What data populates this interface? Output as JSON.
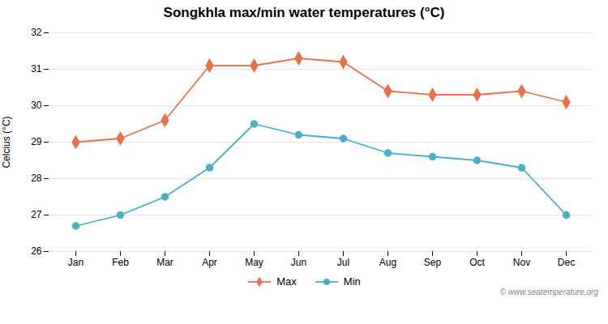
{
  "chart_data": {
    "type": "line",
    "title": "Songkhla max/min water temperatures (°C)",
    "y_label": "Celcius (°C)",
    "categories": [
      "Jan",
      "Feb",
      "Mar",
      "Apr",
      "May",
      "Jun",
      "Jul",
      "Aug",
      "Sep",
      "Oct",
      "Nov",
      "Dec"
    ],
    "series": [
      {
        "name": "Max",
        "color": "#E8704A",
        "marker": "diamond",
        "values": [
          29.0,
          29.1,
          29.6,
          31.1,
          31.1,
          31.3,
          31.2,
          30.4,
          30.3,
          30.3,
          30.4,
          30.1
        ]
      },
      {
        "name": "Min",
        "color": "#4AAFC8",
        "marker": "circle",
        "values": [
          26.7,
          27.0,
          27.5,
          28.3,
          29.5,
          29.2,
          29.1,
          28.7,
          28.6,
          28.5,
          28.3,
          27.0
        ]
      }
    ],
    "ylim": [
      26.0,
      32.0
    ],
    "yticks": [
      26,
      27,
      28,
      29,
      30,
      31,
      32
    ],
    "grid": true,
    "legend": "bottom",
    "annotations": [
      "© www.seatemperature.org"
    ]
  }
}
